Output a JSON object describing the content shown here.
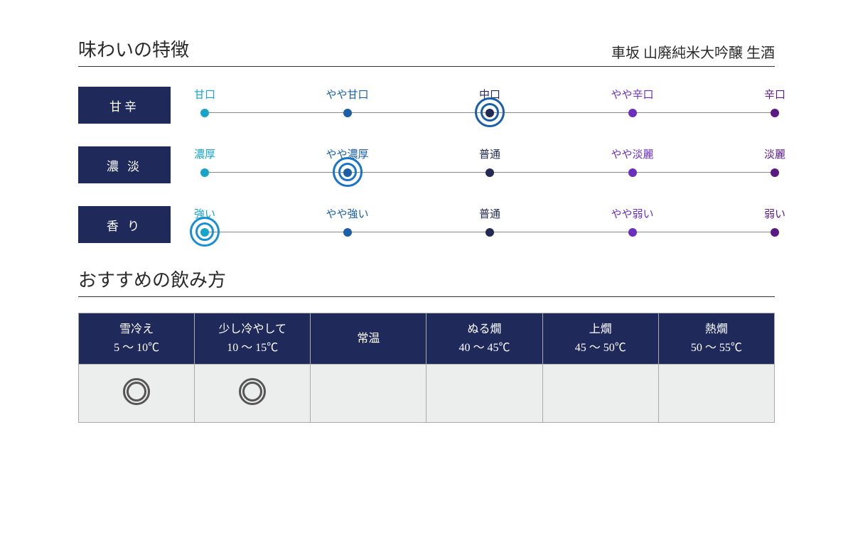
{
  "taste": {
    "title": "味わいの特徴",
    "product": "車坂 山廃純米大吟醸 生酒",
    "scales": [
      {
        "label": "甘辛",
        "selected_index": 2,
        "ring_color": "#1a5fa8",
        "points": [
          {
            "label": "甘口",
            "color": "#16a5c9"
          },
          {
            "label": "やや甘口",
            "color": "#1a5fa8"
          },
          {
            "label": "中口",
            "color": "#232b55"
          },
          {
            "label": "やや辛口",
            "color": "#6a2fbd"
          },
          {
            "label": "辛口",
            "color": "#5a1a85"
          }
        ]
      },
      {
        "label": "濃 淡",
        "selected_index": 1,
        "ring_color": "#1a74c9",
        "points": [
          {
            "label": "濃厚",
            "color": "#16a5c9"
          },
          {
            "label": "やや濃厚",
            "color": "#1a5fa8"
          },
          {
            "label": "普通",
            "color": "#232b55"
          },
          {
            "label": "やや淡麗",
            "color": "#6a2fbd"
          },
          {
            "label": "淡麗",
            "color": "#5a1a85"
          }
        ]
      },
      {
        "label": "香 り",
        "selected_index": 0,
        "ring_color": "#1a8fd4",
        "points": [
          {
            "label": "強い",
            "color": "#16a5c9"
          },
          {
            "label": "やや強い",
            "color": "#1a5fa8"
          },
          {
            "label": "普通",
            "color": "#232b55"
          },
          {
            "label": "やや弱い",
            "color": "#6a2fbd"
          },
          {
            "label": "弱い",
            "color": "#5a1a85"
          }
        ]
      }
    ]
  },
  "serving": {
    "title": "おすすめの飲み方",
    "columns": [
      {
        "name": "雪冷え",
        "temp": "5 ～ 10℃",
        "recommended": true
      },
      {
        "name": "少し冷やして",
        "temp": "10 ～ 15℃",
        "recommended": true
      },
      {
        "name": "常温",
        "temp": "",
        "recommended": false
      },
      {
        "name": "ぬる燗",
        "temp": "40 ～ 45℃",
        "recommended": false
      },
      {
        "name": "上燗",
        "temp": "45 ～ 50℃",
        "recommended": false
      },
      {
        "name": "熱燗",
        "temp": "50 ～ 55℃",
        "recommended": false
      }
    ]
  },
  "colors": {
    "header_bg": "#1f2a5b",
    "mark_color": "#555"
  }
}
